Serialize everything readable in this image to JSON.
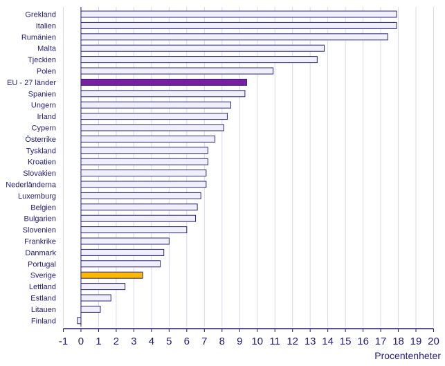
{
  "chart_data": {
    "type": "bar",
    "orientation": "horizontal",
    "xlabel": "Procentenheter",
    "xlim": [
      -1,
      20
    ],
    "xticks": [
      "-1",
      "0",
      "1",
      "2",
      "3",
      "4",
      "5",
      "6",
      "7",
      "8",
      "9",
      "10",
      "11",
      "12",
      "13",
      "14",
      "15",
      "16",
      "17",
      "18",
      "19",
      "20"
    ],
    "grid": "vertical",
    "categories": [
      "Grekland",
      "Italien",
      "Rumänien",
      "Malta",
      "Tjeckien",
      "Polen",
      "EU - 27 länder",
      "Spanien",
      "Ungern",
      "Irland",
      "Cypern",
      "Österrike",
      "Tyskland",
      "Kroatien",
      "Slovakien",
      "Nederländerna",
      "Luxemburg",
      "Belgien",
      "Bulgarien",
      "Slovenien",
      "Frankrike",
      "Danmark",
      "Portugal",
      "Sverige",
      "Lettland",
      "Estland",
      "Litauen",
      "Finland"
    ],
    "values": [
      17.9,
      17.9,
      17.4,
      13.8,
      13.4,
      10.9,
      9.4,
      9.3,
      8.5,
      8.3,
      8.1,
      7.6,
      7.2,
      7.2,
      7.1,
      7.1,
      6.8,
      6.6,
      6.5,
      6.0,
      5.0,
      4.7,
      4.5,
      3.5,
      2.5,
      1.7,
      1.1,
      -0.2
    ],
    "colors": {
      "default": "#f0eeff",
      "highlight_eu": "#7b1fa2",
      "highlight_sverige": "#ffb800",
      "bar_stroke": "#2a2470",
      "grid": "#d9d6f2",
      "axis": "#1f1b7a"
    },
    "highlights": {
      "EU - 27 länder": "highlight_eu",
      "Sverige": "highlight_sverige"
    }
  }
}
